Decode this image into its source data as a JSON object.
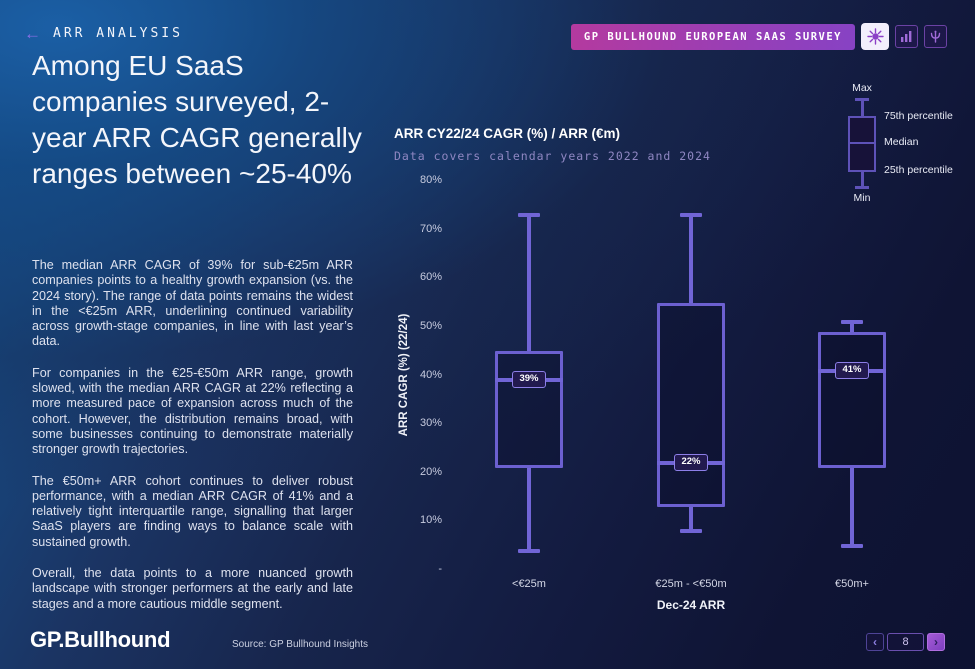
{
  "header": {
    "kicker": "ARR ANALYSIS"
  },
  "badge": {
    "label": "GP BULLHOUND EUROPEAN SAAS SURVEY"
  },
  "headline": "Among EU SaaS companies surveyed, 2-year ARR CAGR generally ranges between ~25-40%",
  "paragraphs": [
    "The median ARR CAGR of 39% for sub-€25m ARR companies points to a healthy growth expansion (vs. the 2024 story). The range of data points remains the widest in the <€25m ARR, underlining continued variability across growth-stage companies, in line with last year’s data.",
    "For companies in the €25-€50m ARR range, growth slowed, with the median ARR CAGR at 22% reflecting a more measured pace of expansion across much of the cohort. However, the distribution remains broad, with some businesses continuing to demonstrate materially stronger growth trajectories.",
    "The €50m+ ARR cohort continues to deliver robust performance, with a median ARR CAGR of 41% and a relatively tight interquartile range, signalling that larger SaaS players are finding ways to balance scale with sustained growth.",
    "Overall, the data points to a more nuanced growth landscape with stronger performers at the early and late stages and a more cautious middle segment."
  ],
  "footer": {
    "logo": "GP.Bullhound",
    "source": "Source: GP Bullhound Insights",
    "page": "8",
    "prev_glyph": "‹",
    "next_glyph": "›"
  },
  "chart_data": {
    "type": "boxplot",
    "title": "ARR CY22/24 CAGR (%) / ARR (€m)",
    "subtitle": "Data covers calendar years 2022 and 2024",
    "xlabel": "Dec-24 ARR",
    "ylabel": "ARR CAGR (%) (22/24)",
    "ylim": [
      0,
      80
    ],
    "grid": false,
    "yticks": [
      {
        "value": 80,
        "label": "80%"
      },
      {
        "value": 70,
        "label": "70%"
      },
      {
        "value": 60,
        "label": "60%"
      },
      {
        "value": 50,
        "label": "50%"
      },
      {
        "value": 40,
        "label": "40%"
      },
      {
        "value": 30,
        "label": "30%"
      },
      {
        "value": 20,
        "label": "20%"
      },
      {
        "value": 10,
        "label": "10%"
      },
      {
        "value": 0,
        "label": "-"
      }
    ],
    "categories": [
      "<€25m",
      "€25m - <€50m",
      "€50m+"
    ],
    "series": [
      {
        "category": "<€25m",
        "min": 4,
        "q1": 21,
        "median": 39,
        "q3": 45,
        "max": 73,
        "median_label": "39%"
      },
      {
        "category": "€25m - <€50m",
        "min": 8,
        "q1": 13,
        "median": 22,
        "q3": 55,
        "max": 73,
        "median_label": "22%"
      },
      {
        "category": "€50m+",
        "min": 5,
        "q1": 21,
        "median": 41,
        "q3": 49,
        "max": 51,
        "median_label": "41%"
      }
    ],
    "legend": {
      "max": "Max",
      "q3": "75th percentile",
      "median": "Median",
      "q1": "25th percentile",
      "min": "Min"
    },
    "colors": {
      "box_border": "#6c60d0",
      "whisker": "#7165d6",
      "chip_bg": "#221a4f",
      "chip_border": "#8d7fe8",
      "badge_gradient_start": "#b43a9f",
      "badge_gradient_end": "#8742c4",
      "background_top_left": "#17518f",
      "background_bottom_right": "#0d1232"
    }
  }
}
